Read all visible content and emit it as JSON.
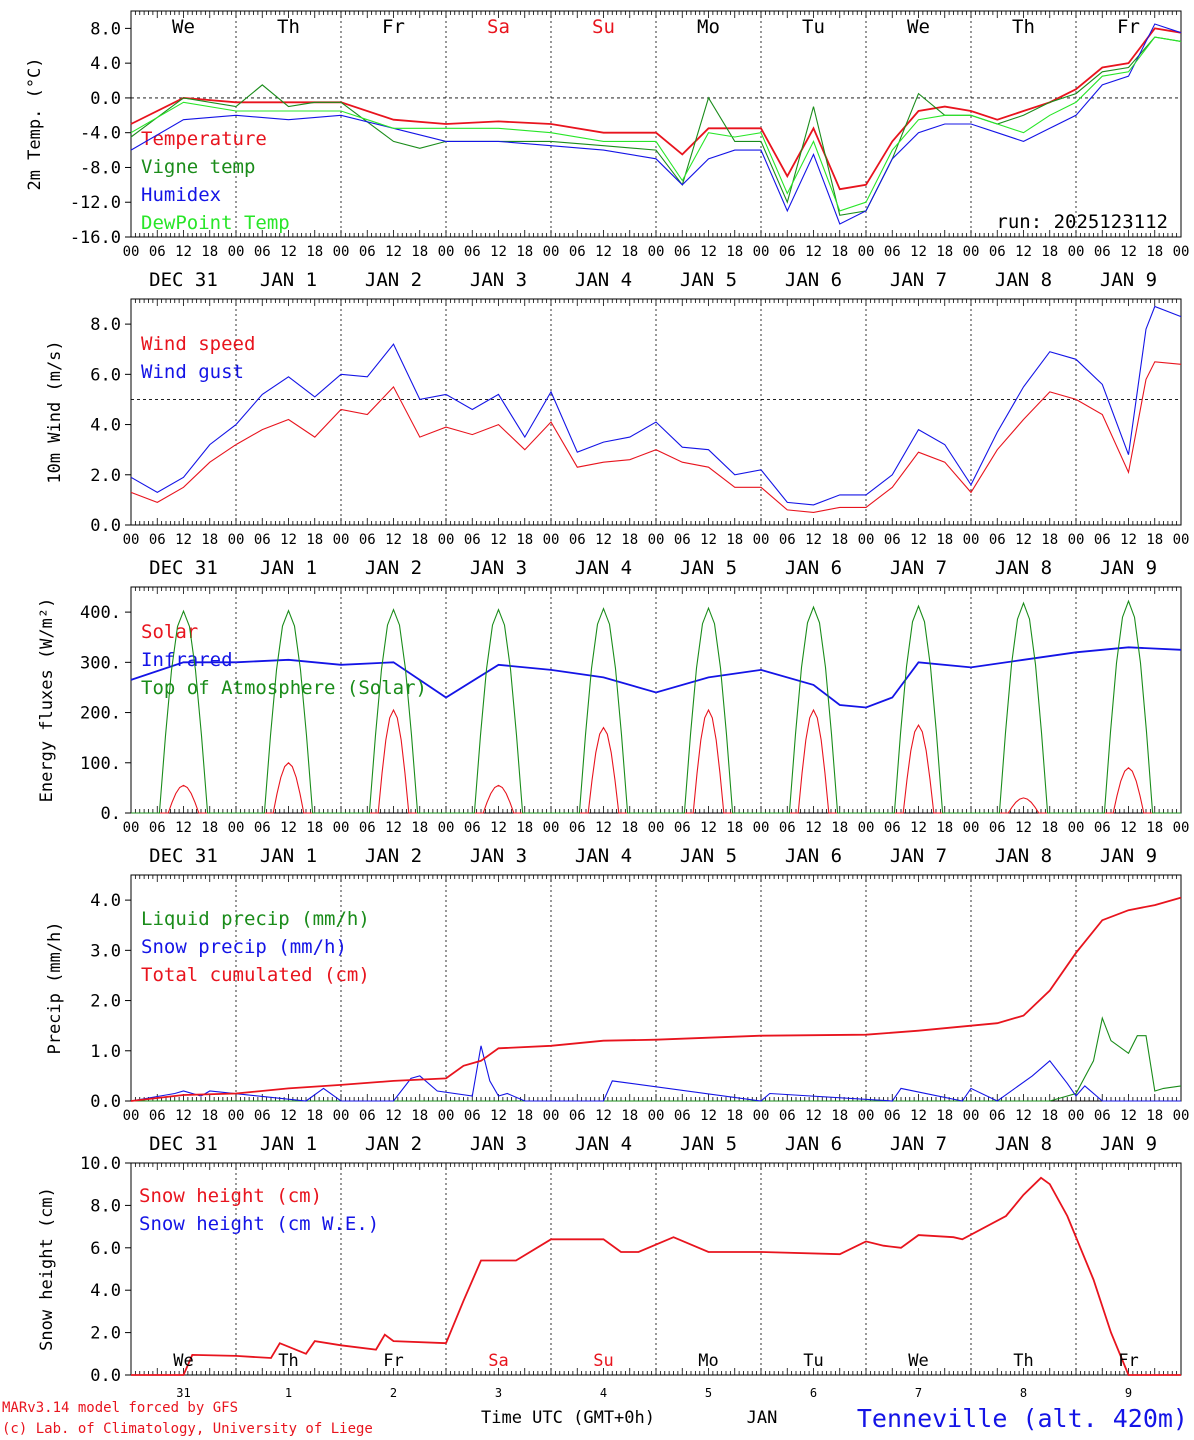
{
  "footer": {
    "model_line1": "MARv3.14 model forced by GFS",
    "model_line2": "(c) Lab. of Climatology, University of Liege",
    "xlabel": "Time UTC (GMT+0h)",
    "month": "JAN",
    "station": "Tenneville (alt. 420m)"
  },
  "colors": {
    "red": "#e8141e",
    "green": "#1a8c1a",
    "blue": "#1414e6",
    "lime": "#28e628",
    "black": "#000000"
  },
  "hour_ticks": [
    "00",
    "06",
    "12",
    "18"
  ],
  "date_labels": [
    "DEC 31",
    "JAN  1",
    "JAN  2",
    "JAN  3",
    "JAN  4",
    "JAN  5",
    "JAN  6",
    "JAN  7",
    "JAN  8",
    "JAN  9"
  ],
  "day_labels": [
    {
      "text": "We",
      "color": "#000000"
    },
    {
      "text": "Th",
      "color": "#000000"
    },
    {
      "text": "Fr",
      "color": "#000000"
    },
    {
      "text": "Sa",
      "color": "#e8141e"
    },
    {
      "text": "Su",
      "color": "#e8141e"
    },
    {
      "text": "Mo",
      "color": "#000000"
    },
    {
      "text": "Tu",
      "color": "#000000"
    },
    {
      "text": "We",
      "color": "#000000"
    },
    {
      "text": "Th",
      "color": "#000000"
    },
    {
      "text": "Fr",
      "color": "#000000"
    }
  ],
  "bottom_days": [
    "31",
    "1",
    "2",
    "3",
    "4",
    "5",
    "6",
    "7",
    "8",
    "9"
  ],
  "chart_data": [
    {
      "type": "line",
      "ylabel": "2m Temp. (°C)",
      "ylim": [
        -16,
        10
      ],
      "yticks": [
        "-16.0",
        "-12.0",
        "-8.0",
        "-4.0",
        "0.0",
        "4.0",
        "8.0"
      ],
      "ref_line": 0,
      "run_label": "run: 2025123112",
      "x_unit": "hours since DEC 31 00 UTC",
      "series": [
        {
          "name": "Temperature",
          "color": "#e8141e",
          "x": [
            0,
            12,
            24,
            36,
            48,
            60,
            72,
            84,
            96,
            108,
            120,
            126,
            132,
            138,
            144,
            150,
            156,
            162,
            168,
            174,
            180,
            186,
            192,
            198,
            204,
            210,
            216,
            222,
            228,
            234,
            240
          ],
          "values": [
            -3,
            0,
            -0.5,
            -0.5,
            -0.5,
            -2.5,
            -3,
            -2.7,
            -3,
            -4,
            -4,
            -6.5,
            -3.5,
            -3.5,
            -3.5,
            -9,
            -3.5,
            -10.5,
            -10,
            -5,
            -1.5,
            -1,
            -1.5,
            -2.5,
            -1.5,
            -0.5,
            1,
            3.5,
            4,
            8,
            7.5
          ]
        },
        {
          "name": "Vigne temp",
          "color": "#1a8c1a",
          "x": [
            0,
            12,
            24,
            30,
            36,
            42,
            48,
            60,
            66,
            72,
            84,
            96,
            108,
            120,
            126,
            132,
            138,
            144,
            150,
            156,
            162,
            168,
            174,
            180,
            186,
            192,
            198,
            204,
            210,
            216,
            222,
            228,
            234,
            240
          ],
          "values": [
            -4.5,
            0,
            -1,
            1.5,
            -1,
            -0.5,
            -0.5,
            -5,
            -5.8,
            -5,
            -5,
            -5,
            -5.5,
            -6,
            -10,
            0,
            -5,
            -5,
            -12,
            -1,
            -13.5,
            -13,
            -7,
            0.5,
            -2,
            -2,
            -3,
            -2,
            -0.5,
            0.5,
            3,
            3.5,
            7,
            6.5
          ]
        },
        {
          "name": "Humidex",
          "color": "#1414e6",
          "x": [
            0,
            12,
            24,
            36,
            48,
            60,
            72,
            84,
            96,
            108,
            120,
            126,
            132,
            138,
            144,
            150,
            156,
            162,
            168,
            174,
            180,
            186,
            192,
            198,
            204,
            210,
            216,
            222,
            228,
            234,
            240
          ],
          "values": [
            -6,
            -2.5,
            -2,
            -2.5,
            -2,
            -3.5,
            -5,
            -5,
            -5.5,
            -6,
            -7,
            -10,
            -7,
            -6,
            -6,
            -13,
            -6.5,
            -14.5,
            -13,
            -7,
            -4,
            -3,
            -3,
            -4,
            -5,
            -3.5,
            -2,
            1.5,
            2.5,
            8.5,
            7.5
          ]
        },
        {
          "name": "DewPoint Temp",
          "color": "#28e628",
          "x": [
            0,
            12,
            24,
            36,
            48,
            60,
            72,
            84,
            96,
            108,
            120,
            126,
            132,
            138,
            144,
            150,
            156,
            162,
            168,
            174,
            180,
            186,
            192,
            198,
            204,
            210,
            216,
            222,
            228,
            234,
            240
          ],
          "values": [
            -4,
            -0.5,
            -1.5,
            -1.5,
            -1.5,
            -3.5,
            -3.5,
            -3.5,
            -4,
            -5,
            -5,
            -9.5,
            -4,
            -4.5,
            -4,
            -11,
            -5,
            -13,
            -12,
            -6,
            -2.5,
            -2,
            -2,
            -3,
            -4,
            -2,
            -0.5,
            2.5,
            3,
            7,
            6.5
          ]
        }
      ]
    },
    {
      "type": "line",
      "ylabel": "10m Wind (m/s)",
      "ylim": [
        0,
        9
      ],
      "yticks": [
        "0.0",
        "2.0",
        "4.0",
        "6.0",
        "8.0"
      ],
      "ref_line": 5,
      "x_unit": "hours since DEC 31 00 UTC",
      "series": [
        {
          "name": "Wind speed",
          "color": "#e8141e",
          "x": [
            0,
            6,
            12,
            18,
            24,
            30,
            36,
            42,
            48,
            54,
            60,
            66,
            72,
            78,
            84,
            90,
            96,
            102,
            108,
            114,
            120,
            126,
            132,
            138,
            144,
            150,
            156,
            162,
            168,
            174,
            180,
            186,
            192,
            198,
            204,
            210,
            216,
            222,
            228,
            232,
            234,
            240
          ],
          "values": [
            1.3,
            0.9,
            1.5,
            2.5,
            3.2,
            3.8,
            4.2,
            3.5,
            4.6,
            4.4,
            5.5,
            3.5,
            3.9,
            3.6,
            4.0,
            3.0,
            4.1,
            2.3,
            2.5,
            2.6,
            3.0,
            2.5,
            2.3,
            1.5,
            1.5,
            0.6,
            0.5,
            0.7,
            0.7,
            1.5,
            2.9,
            2.5,
            1.3,
            3.0,
            4.2,
            5.3,
            5.0,
            4.4,
            2.1,
            5.8,
            6.5,
            6.4
          ]
        },
        {
          "name": "Wind gust",
          "color": "#1414e6",
          "x": [
            0,
            6,
            12,
            18,
            24,
            30,
            36,
            42,
            48,
            54,
            60,
            66,
            72,
            78,
            84,
            90,
            96,
            102,
            108,
            114,
            120,
            126,
            132,
            138,
            144,
            150,
            156,
            162,
            168,
            174,
            180,
            186,
            192,
            198,
            204,
            210,
            216,
            222,
            228,
            232,
            234,
            240
          ],
          "values": [
            1.9,
            1.3,
            1.9,
            3.2,
            4.0,
            5.2,
            5.9,
            5.1,
            6.0,
            5.9,
            7.2,
            5.0,
            5.2,
            4.6,
            5.2,
            3.5,
            5.3,
            2.9,
            3.3,
            3.5,
            4.1,
            3.1,
            3.0,
            2.0,
            2.2,
            0.9,
            0.8,
            1.2,
            1.2,
            2.0,
            3.8,
            3.2,
            1.6,
            3.7,
            5.5,
            6.9,
            6.6,
            5.6,
            2.8,
            7.8,
            8.7,
            8.3
          ]
        }
      ]
    },
    {
      "type": "line",
      "ylabel": "Energy fluxes (W/m²)",
      "ylim": [
        0,
        450
      ],
      "yticks": [
        "0.",
        "100.",
        "200.",
        "300.",
        "400."
      ],
      "x_unit": "hours since DEC 31 00 UTC",
      "series": [
        {
          "name": "Solar",
          "color": "#e8141e",
          "peaks": [
            55,
            100,
            205,
            55,
            170,
            205,
            205,
            175,
            30,
            90
          ]
        },
        {
          "name": "Infrared",
          "color": "#1414e6",
          "x": [
            0,
            12,
            24,
            36,
            48,
            60,
            72,
            84,
            96,
            108,
            120,
            132,
            144,
            156,
            162,
            168,
            174,
            180,
            192,
            204,
            216,
            228,
            240
          ],
          "values": [
            265,
            300,
            300,
            305,
            295,
            300,
            230,
            295,
            285,
            270,
            240,
            270,
            285,
            255,
            215,
            210,
            230,
            300,
            290,
            305,
            320,
            330,
            325
          ]
        },
        {
          "name": "Top of Atmosphere (Solar)",
          "color": "#1a8c1a",
          "peaks": [
            402,
            403,
            405,
            405,
            407,
            408,
            410,
            412,
            418,
            422
          ]
        }
      ]
    },
    {
      "type": "line",
      "ylabel": "Precip (mm/h)",
      "ylim": [
        0,
        4.5
      ],
      "yticks": [
        "0.0",
        "1.0",
        "2.0",
        "3.0",
        "4.0"
      ],
      "x_unit": "hours since DEC 31 00 UTC",
      "series": [
        {
          "name": "Liquid precip (mm/h)",
          "color": "#1a8c1a",
          "x": [
            0,
            210,
            216,
            220,
            222,
            224,
            228,
            230,
            232,
            234,
            236,
            240
          ],
          "values": [
            0,
            0,
            0.15,
            0.8,
            1.65,
            1.2,
            0.95,
            1.3,
            1.3,
            0.2,
            0.25,
            0.3
          ]
        },
        {
          "name": "Snow precip (mm/h)",
          "color": "#1414e6",
          "x": [
            0,
            10,
            12,
            16,
            18,
            40,
            44,
            48,
            60,
            64,
            66,
            70,
            78,
            80,
            82,
            84,
            86,
            90,
            108,
            110,
            144,
            146,
            174,
            176,
            190,
            192,
            198,
            206,
            210,
            214,
            216,
            218,
            222,
            240
          ],
          "values": [
            0,
            0.15,
            0.2,
            0.1,
            0.2,
            0,
            0.25,
            0,
            0,
            0.45,
            0.5,
            0.2,
            0.1,
            1.1,
            0.4,
            0.1,
            0.15,
            0,
            0,
            0.4,
            0,
            0.15,
            0,
            0.25,
            0,
            0.25,
            0,
            0.5,
            0.8,
            0.35,
            0.1,
            0.3,
            0,
            0
          ]
        },
        {
          "name": "Total cumulated (cm)",
          "color": "#e8141e",
          "x": [
            0,
            12,
            24,
            36,
            48,
            60,
            72,
            76,
            80,
            84,
            96,
            108,
            120,
            144,
            168,
            180,
            192,
            198,
            204,
            210,
            216,
            222,
            228,
            234,
            240
          ],
          "values": [
            0,
            0.12,
            0.15,
            0.25,
            0.32,
            0.4,
            0.45,
            0.7,
            0.8,
            1.05,
            1.1,
            1.2,
            1.22,
            1.3,
            1.32,
            1.4,
            1.5,
            1.55,
            1.7,
            2.2,
            2.95,
            3.6,
            3.8,
            3.9,
            4.05
          ]
        }
      ]
    },
    {
      "type": "line",
      "ylabel": "Snow height (cm)",
      "ylim": [
        0,
        10
      ],
      "yticks": [
        "0.0",
        "2.0",
        "4.0",
        "6.0",
        "8.0",
        "10.0"
      ],
      "x_unit": "hours since DEC 31 00 UTC",
      "series": [
        {
          "name": "Snow height (cm)",
          "color": "#e8141e",
          "x": [
            0,
            12,
            14,
            24,
            32,
            34,
            40,
            42,
            48,
            56,
            58,
            60,
            72,
            76,
            80,
            88,
            96,
            108,
            112,
            116,
            124,
            132,
            140,
            144,
            162,
            168,
            172,
            176,
            180,
            188,
            190,
            200,
            202,
            204,
            208,
            210,
            214,
            216,
            220,
            224,
            228,
            230,
            240
          ],
          "values": [
            0,
            0,
            0.95,
            0.9,
            0.8,
            1.5,
            1.0,
            1.6,
            1.4,
            1.2,
            1.9,
            1.6,
            1.5,
            3.5,
            5.4,
            5.4,
            6.4,
            6.4,
            5.8,
            5.8,
            6.5,
            5.8,
            5.8,
            5.8,
            5.7,
            6.3,
            6.1,
            6.0,
            6.6,
            6.5,
            6.4,
            7.5,
            8.0,
            8.5,
            9.3,
            9.0,
            7.5,
            6.5,
            4.5,
            2.0,
            0,
            0,
            0
          ]
        },
        {
          "name": "Snow height (cm W.E.)",
          "color": "#1414e6",
          "x": [],
          "values": []
        }
      ]
    }
  ]
}
